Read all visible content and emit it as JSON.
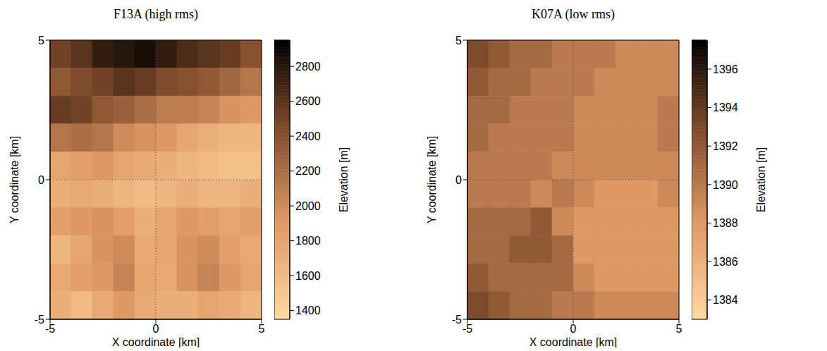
{
  "chart_data": [
    {
      "type": "heatmap",
      "title": "F13A (high rms)",
      "x_label": "X coordinate [km]",
      "y_label": "Y coordinate [km]",
      "xlim": [
        -5,
        5
      ],
      "ylim": [
        -5,
        5
      ],
      "xticks": [
        -5,
        0,
        5
      ],
      "yticks": [
        -5,
        0,
        5
      ],
      "grid": true,
      "x_edges": [
        -5,
        -4,
        -3,
        -2,
        -1,
        0,
        1,
        2,
        3,
        4,
        5
      ],
      "y_edges": [
        5,
        4,
        3,
        2,
        1,
        0,
        -1,
        -2,
        -3,
        -4,
        -5
      ],
      "cells": [
        [
          2500,
          2600,
          2750,
          2800,
          2850,
          2750,
          2650,
          2600,
          2550,
          2400
        ],
        [
          2350,
          2450,
          2500,
          2600,
          2550,
          2450,
          2400,
          2350,
          2250,
          2150
        ],
        [
          2550,
          2500,
          2350,
          2300,
          2200,
          2100,
          2100,
          2050,
          1950,
          1900
        ],
        [
          2150,
          2200,
          2150,
          2000,
          1950,
          1900,
          1800,
          1700,
          1650,
          1650
        ],
        [
          1800,
          1850,
          1900,
          1800,
          1750,
          1700,
          1650,
          1600,
          1550,
          1550
        ],
        [
          1700,
          1750,
          1700,
          1650,
          1600,
          1650,
          1700,
          1650,
          1650,
          1700
        ],
        [
          1850,
          1900,
          1950,
          1850,
          1700,
          1800,
          1900,
          1850,
          1800,
          1850
        ],
        [
          1650,
          1800,
          1950,
          2000,
          1750,
          1800,
          1950,
          2000,
          1850,
          1750
        ],
        [
          1750,
          1850,
          1900,
          2050,
          1800,
          1750,
          1950,
          2050,
          1900,
          1800
        ],
        [
          1700,
          1600,
          1750,
          1900,
          1750,
          1700,
          1700,
          1800,
          1750,
          1650
        ]
      ],
      "colorbar": {
        "label": "Elevation [m]",
        "lim": [
          1350,
          2950
        ],
        "ticks": [
          1400,
          1600,
          1800,
          2000,
          2200,
          2400,
          2600,
          2800
        ]
      }
    },
    {
      "type": "heatmap",
      "title": "K07A (low rms)",
      "x_label": "X coordinate [km]",
      "y_label": "Y coordinate [km]",
      "xlim": [
        -5,
        5
      ],
      "ylim": [
        -5,
        5
      ],
      "xticks": [
        -5,
        0,
        5
      ],
      "yticks": [
        -5,
        0,
        5
      ],
      "grid": true,
      "x_edges": [
        -5,
        -4,
        -3,
        -2,
        -1,
        0,
        1,
        2,
        3,
        4,
        5
      ],
      "y_edges": [
        5,
        4,
        3,
        2,
        1,
        0,
        -1,
        -2,
        -3,
        -4,
        -5
      ],
      "cells": [
        [
          1393,
          1392,
          1391,
          1391,
          1390,
          1390,
          1390,
          1389,
          1389,
          1389
        ],
        [
          1392,
          1391,
          1391,
          1390,
          1390,
          1390,
          1389,
          1389,
          1389,
          1389
        ],
        [
          1391,
          1391,
          1390,
          1390,
          1390,
          1389,
          1389,
          1389,
          1389,
          1390
        ],
        [
          1391,
          1390,
          1390,
          1390,
          1390,
          1389,
          1389,
          1389,
          1389,
          1390
        ],
        [
          1390,
          1390,
          1390,
          1390,
          1389,
          1389,
          1389,
          1389,
          1389,
          1389
        ],
        [
          1390,
          1390,
          1390,
          1389,
          1390,
          1389,
          1388,
          1388,
          1388,
          1389
        ],
        [
          1391,
          1391,
          1391,
          1392,
          1389,
          1388,
          1388,
          1388,
          1388,
          1388
        ],
        [
          1391,
          1391,
          1392,
          1392,
          1391,
          1388,
          1388,
          1388,
          1388,
          1388
        ],
        [
          1392,
          1391,
          1391,
          1391,
          1391,
          1389,
          1388,
          1388,
          1388,
          1388
        ],
        [
          1393,
          1392,
          1391,
          1391,
          1390,
          1390,
          1389,
          1389,
          1389,
          1389
        ]
      ],
      "colorbar": {
        "label": "Elevation [m]",
        "lim": [
          1383,
          1397.5
        ],
        "ticks": [
          1384,
          1386,
          1388,
          1390,
          1392,
          1394,
          1396
        ]
      }
    }
  ]
}
